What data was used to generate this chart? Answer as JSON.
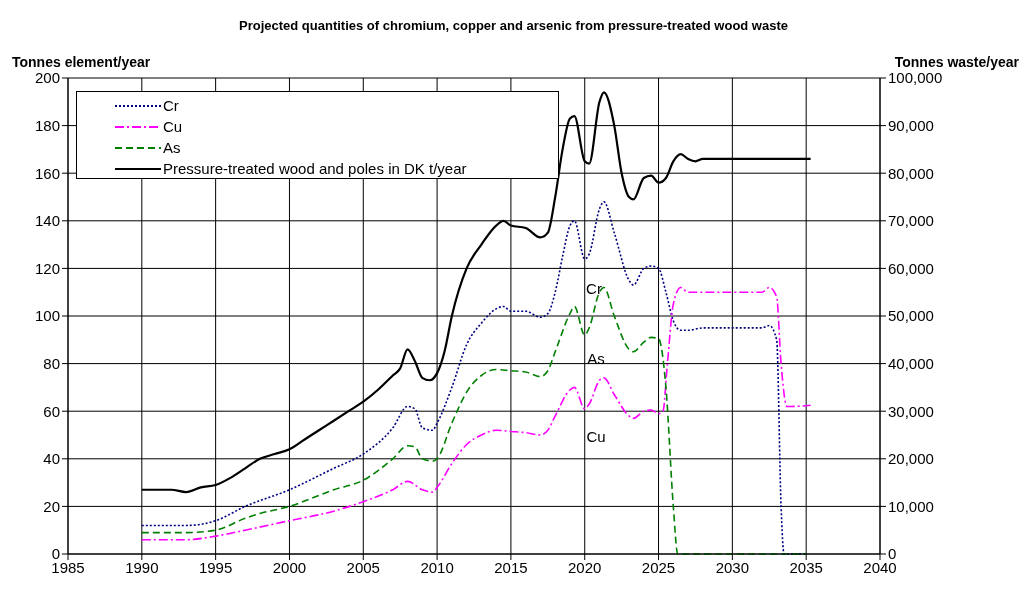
{
  "chart_data": {
    "type": "line",
    "title": "Projected quantities of chromium, copper and arsenic from pressure-treated wood waste",
    "ylabel": "Tonnes element/year",
    "y2label": "Tonnes waste/year",
    "xlim": [
      1985,
      2040
    ],
    "xticks": [
      1985,
      1990,
      1995,
      2000,
      2005,
      2010,
      2015,
      2020,
      2025,
      2030,
      2035,
      2040
    ],
    "ylim": [
      0,
      200
    ],
    "yticks": [
      0,
      20,
      40,
      60,
      80,
      100,
      120,
      140,
      160,
      180,
      200
    ],
    "y2lim": [
      0,
      100000
    ],
    "y2ticks": [
      {
        "value": 0,
        "label": "0"
      },
      {
        "value": 10000,
        "label": "10,000"
      },
      {
        "value": 20000,
        "label": "20,000"
      },
      {
        "value": 30000,
        "label": "30,000"
      },
      {
        "value": 40000,
        "label": "40,000"
      },
      {
        "value": 50000,
        "label": "50,000"
      },
      {
        "value": 60000,
        "label": "60,000"
      },
      {
        "value": 70000,
        "label": "70,000"
      },
      {
        "value": 80000,
        "label": "80,000"
      },
      {
        "value": 90000,
        "label": "90,000"
      },
      {
        "value": 100000,
        "label": "100,000"
      }
    ],
    "grid": true,
    "legend": "top left",
    "marker": "none",
    "series": [
      {
        "name": "Cr",
        "color": "#000080",
        "line_style": "dotted",
        "x": [
          1990,
          1993,
          1995,
          1997,
          2000,
          2003,
          2005,
          2007,
          2008,
          2008.5,
          2009,
          2009.7,
          2010,
          2011,
          2012,
          2013,
          2014,
          2014.5,
          2015,
          2016,
          2017,
          2017.5,
          2018,
          2018.5,
          2019,
          2019.3,
          2020,
          2020.3,
          2021,
          2021.3,
          2022,
          2023,
          2023.3,
          2024,
          2024.5,
          2025,
          2025.5,
          2026,
          2026.5,
          2027,
          2028,
          2032,
          2032.5,
          2033,
          2033.3,
          2033.5,
          2035
        ],
        "values": [
          12,
          12,
          14,
          20,
          27,
          36,
          42,
          53,
          62,
          61,
          53,
          52,
          55,
          70,
          88,
          97,
          103,
          104,
          102,
          102,
          99.5,
          101,
          110,
          125,
          138,
          140,
          124,
          126,
          145,
          148,
          135,
          115,
          113,
          120,
          121,
          120,
          110,
          98,
          94,
          94,
          95,
          95,
          96,
          90,
          20,
          0,
          0
        ]
      },
      {
        "name": "Cu",
        "color": "#ff00ff",
        "line_style": "dashdot",
        "x": [
          1990,
          1993,
          1995,
          1997,
          2000,
          2003,
          2005,
          2007,
          2008,
          2009,
          2009.7,
          2010,
          2011,
          2012,
          2013,
          2014,
          2015,
          2016,
          2017,
          2017.5,
          2018,
          2019,
          2019.3,
          2020,
          2020.3,
          2021,
          2021.3,
          2022,
          2023,
          2023.3,
          2024,
          2024.5,
          2025,
          2025.3,
          2025.6,
          2026,
          2026.5,
          2027,
          2028,
          2032,
          2032.5,
          2033,
          2033.3,
          2033.7,
          2034,
          2035.3
        ],
        "values": [
          6,
          6,
          7.5,
          10,
          14,
          18,
          22,
          27,
          30.5,
          27,
          26,
          28,
          38,
          46,
          50,
          52,
          51.5,
          51,
          50,
          52,
          58,
          69,
          70,
          61,
          63,
          73,
          74,
          67,
          58,
          57,
          60,
          60.5,
          59,
          60,
          80,
          105,
          112,
          110,
          110,
          110,
          112,
          108,
          80,
          62,
          62,
          62.5
        ]
      },
      {
        "name": "As",
        "color": "#008000",
        "line_style": "dashed",
        "x": [
          1990,
          1993,
          1995,
          1997,
          1998,
          2000,
          2003,
          2005,
          2007,
          2008,
          2008.5,
          2009,
          2009.7,
          2010,
          2011,
          2012,
          2013,
          2014,
          2015,
          2016,
          2017,
          2017.5,
          2018,
          2019,
          2019.3,
          2020,
          2020.3,
          2021,
          2021.3,
          2022,
          2023,
          2023.3,
          2024,
          2024.5,
          2025,
          2025.5,
          2026,
          2026.3,
          2035
        ],
        "values": [
          9,
          9,
          10,
          15,
          17,
          20,
          27,
          31,
          40,
          45.5,
          45,
          40,
          39,
          40,
          55,
          68,
          75,
          77.5,
          77,
          76.5,
          74.5,
          77,
          85,
          101,
          104,
          92,
          95,
          110,
          112,
          100,
          86,
          85,
          89,
          91,
          90.5,
          70,
          20,
          0,
          0
        ]
      },
      {
        "name": "Pressure-treated wood and poles in DK t/year",
        "color": "#000000",
        "line_style": "solid",
        "axis": "y2",
        "x": [
          1990,
          1991,
          1992,
          1993,
          1994,
          1995,
          1996,
          1997,
          1998,
          1999,
          2000,
          2001,
          2002,
          2003,
          2004,
          2005,
          2006,
          2007,
          2007.5,
          2008,
          2008.5,
          2009,
          2009.5,
          2010,
          2010.5,
          2011,
          2012,
          2013,
          2014,
          2014.5,
          2015,
          2016,
          2017,
          2017.5,
          2018,
          2018.5,
          2019,
          2019.3,
          2020,
          2020.3,
          2021,
          2021.3,
          2022,
          2022.5,
          2023,
          2023.3,
          2024,
          2024.5,
          2025,
          2025.5,
          2026,
          2026.5,
          2027,
          2027.5,
          2028,
          2035.3
        ],
        "values": [
          13500,
          13500,
          13500,
          13000,
          14000,
          14500,
          16000,
          18000,
          20000,
          21000,
          22000,
          24000,
          26000,
          28000,
          30000,
          32000,
          34500,
          37500,
          39000,
          43000,
          40500,
          37000,
          36500,
          38000,
          42500,
          50000,
          60000,
          65000,
          69000,
          70000,
          69000,
          68500,
          66500,
          67500,
          75000,
          85000,
          91500,
          92000,
          82500,
          82000,
          95000,
          97000,
          90000,
          80000,
          75000,
          74500,
          79000,
          79500,
          78000,
          79000,
          82500,
          84000,
          83000,
          82500,
          83000,
          83000
        ]
      }
    ],
    "annotations": [
      "Cr",
      "As",
      "Cu"
    ]
  }
}
